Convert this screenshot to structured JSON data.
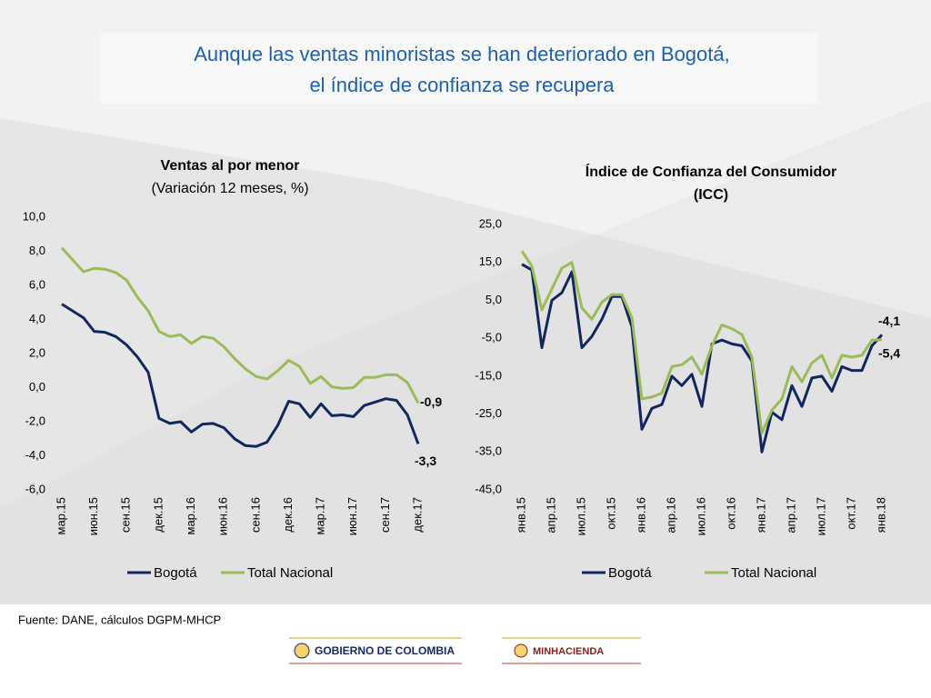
{
  "title_lines": [
    "Aunque las ventas minoristas se han deteriorado en Bogotá,",
    "el índice de confianza se recupera"
  ],
  "source": "Fuente: DANE, cálculos DGPM-MHCP",
  "logos": [
    "GOBIERNO DE COLOMBIA",
    "MINHACIENDA"
  ],
  "chart_data": [
    {
      "type": "line",
      "title": [
        "Ventas al por menor"
      ],
      "subtitle": "(Variación 12 meses, %)",
      "categories": [
        "мар.15",
        null,
        null,
        "июн.15",
        null,
        null,
        "сен.15",
        null,
        null,
        "дек.15",
        null,
        null,
        "мар.16",
        null,
        null,
        "июн.16",
        null,
        null,
        "сен.16",
        null,
        null,
        "дек.16",
        null,
        null,
        "мар.17",
        null,
        null,
        "июн.17",
        null,
        null,
        "сен.17",
        null,
        null,
        "дек.17"
      ],
      "ylim": [
        -6,
        10
      ],
      "yticks": [
        {
          "value": -6,
          "label": "-6,0"
        },
        {
          "value": -4,
          "label": "-4,0"
        },
        {
          "value": -2,
          "label": "-2,0"
        },
        {
          "value": 0,
          "label": "0,0"
        },
        {
          "value": 2,
          "label": "2,0"
        },
        {
          "value": 4,
          "label": "4,0"
        },
        {
          "value": 6,
          "label": "6,0"
        },
        {
          "value": 8,
          "label": "8,0"
        },
        {
          "value": 10,
          "label": "10,0"
        }
      ],
      "grid": false,
      "series": [
        {
          "name": "Bogotá",
          "color": "#13275f",
          "values": [
            4.9,
            4.5,
            4.1,
            3.3,
            3.25,
            3.0,
            2.5,
            1.8,
            0.9,
            -1.8,
            -2.1,
            -2.0,
            -2.6,
            -2.15,
            -2.1,
            -2.35,
            -3.0,
            -3.4,
            -3.45,
            -3.2,
            -2.2,
            -0.8,
            -0.95,
            -1.75,
            -0.95,
            -1.65,
            -1.6,
            -1.7,
            -1.05,
            -0.85,
            -0.65,
            -0.75,
            -1.6,
            -3.3
          ],
          "value_labels": [
            null,
            null,
            null,
            null,
            null,
            null,
            null,
            null,
            null,
            null,
            null,
            null,
            null,
            null,
            null,
            null,
            null,
            null,
            null,
            null,
            null,
            null,
            null,
            null,
            null,
            null,
            null,
            null,
            null,
            null,
            null,
            null,
            null,
            "-3,3"
          ]
        },
        {
          "name": "Total Nacional",
          "color": "#9bbb59",
          "values": [
            8.2,
            7.5,
            6.8,
            7.0,
            6.95,
            6.75,
            6.3,
            5.3,
            4.5,
            3.3,
            3.0,
            3.1,
            2.6,
            3.0,
            2.9,
            2.4,
            1.7,
            1.1,
            0.65,
            0.5,
            1.0,
            1.6,
            1.25,
            0.25,
            0.65,
            0.05,
            -0.05,
            0.0,
            0.6,
            0.6,
            0.75,
            0.75,
            0.3,
            -0.9
          ],
          "value_labels": [
            null,
            null,
            null,
            null,
            null,
            null,
            null,
            null,
            null,
            null,
            null,
            null,
            null,
            null,
            null,
            null,
            null,
            null,
            null,
            null,
            null,
            null,
            null,
            null,
            null,
            null,
            null,
            null,
            null,
            null,
            null,
            null,
            null,
            "-0,9"
          ]
        }
      ]
    },
    {
      "type": "line",
      "title": [
        "Índice de Confianza del Consumidor",
        "(ICC)"
      ],
      "categories": [
        "янв.15",
        null,
        null,
        "апр.15",
        null,
        null,
        "июл.15",
        null,
        null,
        "окт.15",
        null,
        null,
        "янв.16",
        null,
        null,
        "апр.16",
        null,
        null,
        "июл.16",
        null,
        null,
        "окт.16",
        null,
        null,
        "янв.17",
        null,
        null,
        "апр.17",
        null,
        null,
        "июл.17",
        null,
        null,
        "окт.17",
        null,
        null,
        "янв.18"
      ],
      "ylim": [
        -45,
        25
      ],
      "yticks": [
        {
          "value": -45,
          "label": "-45,0"
        },
        {
          "value": -35,
          "label": "-35,0"
        },
        {
          "value": -25,
          "label": "-25,0"
        },
        {
          "value": -15,
          "label": "-15,0"
        },
        {
          "value": -5,
          "label": "-5,0"
        },
        {
          "value": 5,
          "label": "5,0"
        },
        {
          "value": 15,
          "label": "15,0"
        },
        {
          "value": 25,
          "label": "25,0"
        }
      ],
      "grid": false,
      "series": [
        {
          "name": "Bogotá",
          "color": "#13275f",
          "values": [
            14.5,
            13,
            -7.5,
            5,
            7,
            12.5,
            -7.5,
            -4.5,
            0,
            6,
            6,
            -2,
            -29,
            -23.5,
            -22.5,
            -15,
            -17.5,
            -14.5,
            -23,
            -6.5,
            -5.5,
            -6.5,
            -7,
            -11,
            -35,
            -24.5,
            -26.5,
            -17.5,
            -23,
            -15.5,
            -15,
            -19,
            -12.5,
            -13.5,
            -13.5,
            -7,
            -4.1
          ],
          "value_labels": [
            null,
            null,
            null,
            null,
            null,
            null,
            null,
            null,
            null,
            null,
            null,
            null,
            null,
            null,
            null,
            null,
            null,
            null,
            null,
            null,
            null,
            null,
            null,
            null,
            null,
            null,
            null,
            null,
            null,
            null,
            null,
            null,
            null,
            null,
            null,
            null,
            "-4,1"
          ]
        },
        {
          "name": "Total Nacional",
          "color": "#9bbb59",
          "values": [
            18,
            14,
            2.5,
            8,
            13.5,
            15,
            3,
            0,
            4.5,
            6.5,
            6.5,
            0.5,
            -21,
            -20.5,
            -19.5,
            -12.5,
            -12,
            -10,
            -14.5,
            -7,
            -1.5,
            -2.5,
            -4,
            -10,
            -30,
            -24,
            -21,
            -12.5,
            -16.5,
            -11.5,
            -9.5,
            -15.5,
            -9.5,
            -10,
            -9.5,
            -5.5,
            -5.4
          ],
          "value_labels": [
            null,
            null,
            null,
            null,
            null,
            null,
            null,
            null,
            null,
            null,
            null,
            null,
            null,
            null,
            null,
            null,
            null,
            null,
            null,
            null,
            null,
            null,
            null,
            null,
            null,
            null,
            null,
            null,
            null,
            null,
            null,
            null,
            null,
            null,
            null,
            null,
            "-5,4"
          ]
        }
      ]
    }
  ]
}
